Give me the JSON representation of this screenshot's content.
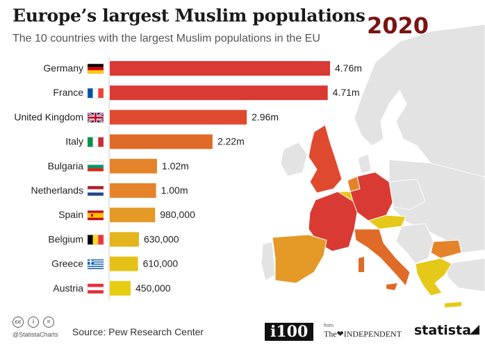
{
  "header": {
    "title": "Europe’s largest Muslim populations",
    "subtitle": "The 10 countries with the largest Muslim populations in the EU",
    "year": "2020"
  },
  "chart_data": {
    "type": "bar",
    "orientation": "horizontal",
    "categories": [
      "Germany",
      "France",
      "United Kingdom",
      "Italy",
      "Bulgaria",
      "Netherlands",
      "Spain",
      "Belgium",
      "Greece",
      "Austria"
    ],
    "values": [
      4760000,
      4710000,
      2960000,
      2220000,
      1020000,
      1000000,
      980000,
      630000,
      610000,
      450000
    ],
    "data_labels": [
      "4.76m",
      "4.71m",
      "2.96m",
      "2.22m",
      "1.02m",
      "1.00m",
      "980,000",
      "630,000",
      "610,000",
      "450,000"
    ],
    "title": "Europe’s largest Muslim populations",
    "subtitle": "The 10 countries with the largest Muslim populations in the EU",
    "colors": [
      "#d93a33",
      "#d93a33",
      "#df4a2f",
      "#e06a27",
      "#e5832a",
      "#e5832a",
      "#e59a27",
      "#e4b41c",
      "#e5c117",
      "#e6cd12"
    ]
  },
  "map": {
    "highlight_colors": {
      "top": "#d93a33",
      "high": "#df4a2f",
      "mid": "#e07a27",
      "low": "#e8a51c",
      "lowest": "#e6c818",
      "other": "#e3e3e3",
      "sea": "#ffffff"
    }
  },
  "footer": {
    "cc_icons": [
      "cc",
      "i",
      "="
    ],
    "handle": "@StatistaCharts",
    "source": "Source: Pew Research Center",
    "i100": "i100",
    "from": "from",
    "independent": "The❤INDEPENDENT",
    "statista": "statista"
  }
}
